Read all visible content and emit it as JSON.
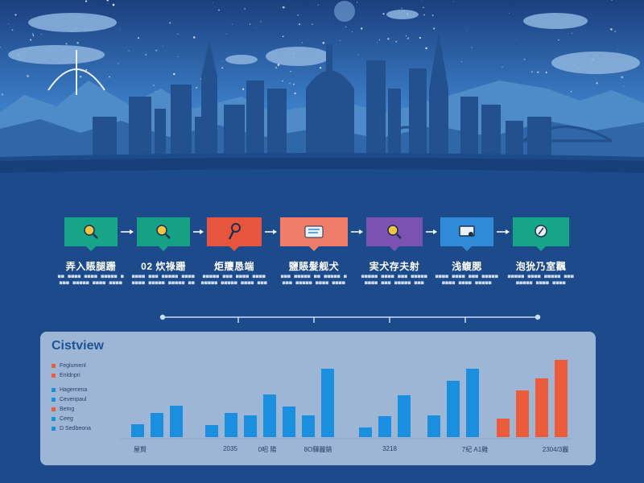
{
  "colors": {
    "sky_top": "#1b3f7e",
    "background": "#1c4a8a",
    "panel": "#9db6d6",
    "bar_blue": "#1a8fe0",
    "bar_orange": "#ec5b3a",
    "panel_title": "#1d5296"
  },
  "process": {
    "steps": [
      {
        "icon": "magnifier-icon",
        "color": "#17a58a",
        "title": "弄入賬腿跚",
        "desc": "■■ ■■■■ ■■■■ ■■■■■ ■■■■ ■■■■■ ■■■■ ■■■■"
      },
      {
        "icon": "magnifier-icon",
        "color": "#16a084",
        "title": "02 炊祿跚",
        "desc": "■■■■ ■■■ ■■■■■ ■■■■ ■■■■ ■■■■■ ■■■■■ ■■"
      },
      {
        "icon": "tool-icon",
        "color": "#e8553e",
        "title": "炬羻恳端",
        "desc": "■■■■■ ■■■ ■■■■ ■■■■ ■■■■■ ■■■■■ ■■■■ ■■■"
      },
      {
        "icon": "document-icon",
        "color": "#f07c6a",
        "title": "鹽賬髮舰犬",
        "desc": "■■■ ■■■■■ ■■ ■■■■■ ■■■■ ■■■■■ ■■■■ ■■■■"
      },
      {
        "icon": "magnifier-icon",
        "color": "#7b52b0",
        "title": "実犬存夫射",
        "desc": "■■■■■ ■■■■ ■■■ ■■■■■ ■■■■ ■■■ ■■■■■ ■■■"
      },
      {
        "icon": "monitor-icon",
        "color": "#2f8ad8",
        "title": "浅鳆腮",
        "desc": "■■■■ ■■■■ ■■■ ■■■■■ ■■■■ ■■■■ ■■■■■"
      },
      {
        "icon": "compass-icon",
        "color": "#17a58a",
        "title": "泡狁乃室飌",
        "desc": "■■■■■ ■■■■ ■■■■■ ■■■ ■■■■■ ■■■■ ■■■■"
      }
    ]
  },
  "panel": {
    "title": "Cistview",
    "legend": [
      {
        "color": "#ec5b3a",
        "label": "Feglumenl"
      },
      {
        "color": "#ec5b3a",
        "label": "Enldnpri"
      },
      {
        "color": "#1a8fe0",
        "label": "Hagemena"
      },
      {
        "color": "#1a8fe0",
        "label": "Cevenpaul"
      },
      {
        "color": "#ec5b3a",
        "label": "Betng"
      },
      {
        "color": "#1a8fe0",
        "label": "Ceeg"
      },
      {
        "color": "#1a8fe0",
        "label": "D Sedbeona"
      }
    ]
  },
  "chart_data": {
    "type": "bar",
    "ylim": [
      0,
      100
    ],
    "groups": [
      {
        "label": "屋賢",
        "color": "#1a8fe0",
        "values": [
          16,
          30,
          39
        ]
      },
      {
        "label": "2035",
        "color": "#1a8fe0",
        "values": [
          15,
          30,
          27,
          53,
          38,
          27,
          85
        ]
      },
      {
        "label": "3218",
        "color": "#1a8fe0",
        "values": [
          12,
          26,
          52
        ]
      },
      {
        "label": "7紀 A1雞",
        "color": "#1a8fe0",
        "values": [
          27,
          70,
          85
        ]
      },
      {
        "label": "2304/3麗",
        "color": "#ec5b3a",
        "values": [
          23,
          58,
          73,
          96
        ]
      }
    ],
    "xlabels": [
      "屋賢",
      "2035",
      "0昭 陽",
      "8O驛麗錯",
      "3218",
      "7紀 A1雞",
      "2304/3麗"
    ]
  }
}
